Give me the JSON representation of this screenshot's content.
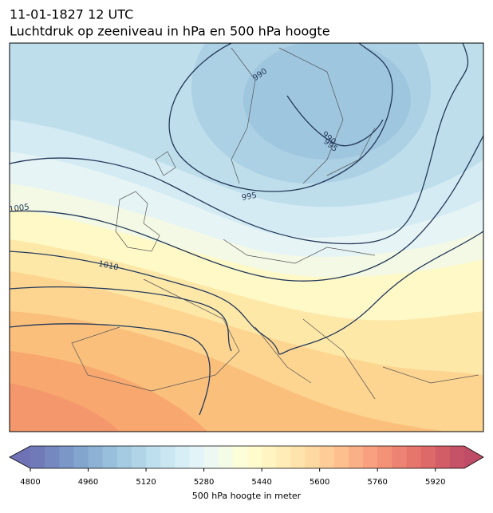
{
  "header": {
    "line1": "11-01-1827 12 UTC",
    "line2": "Luchtdruk op zeeniveau in hPa en 500 hPa hoogte"
  },
  "isobar_labels": [
    990,
    990,
    995,
    995,
    1005,
    1010
  ],
  "colorbar": {
    "range": [
      4800,
      6000
    ],
    "ticks": [
      4800,
      4960,
      5120,
      5280,
      5440,
      5600,
      5760,
      5920
    ],
    "label": "500 hPa hoogte in meter"
  }
}
